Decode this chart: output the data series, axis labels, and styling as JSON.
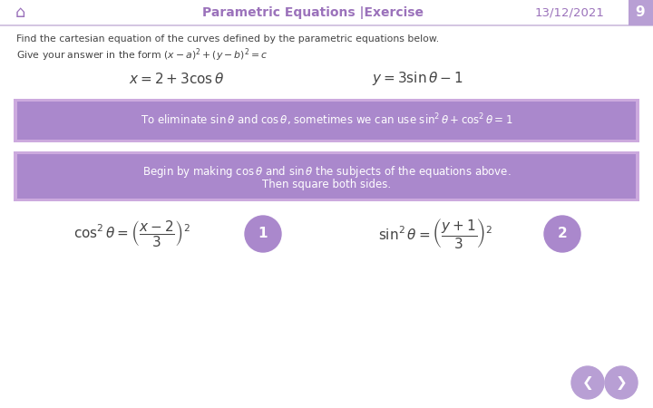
{
  "title": "Parametric Equations |Exercise",
  "date": "13/12/2021",
  "page": "9",
  "bg_color": "#ffffff",
  "header_text_color": "#9b72bb",
  "purple_box_bg": "#aa88cc",
  "purple_box_border": "#ccaaee",
  "white": "#ffffff",
  "body_text_color": "#444444",
  "intro_line1": "Find the cartesian equation of the curves defined by the parametric equations below.",
  "intro_line2": "Give your answer in the form $(x - a)^2 + (y - b)^2 = c$",
  "circle1_label": "1",
  "circle2_label": "2"
}
